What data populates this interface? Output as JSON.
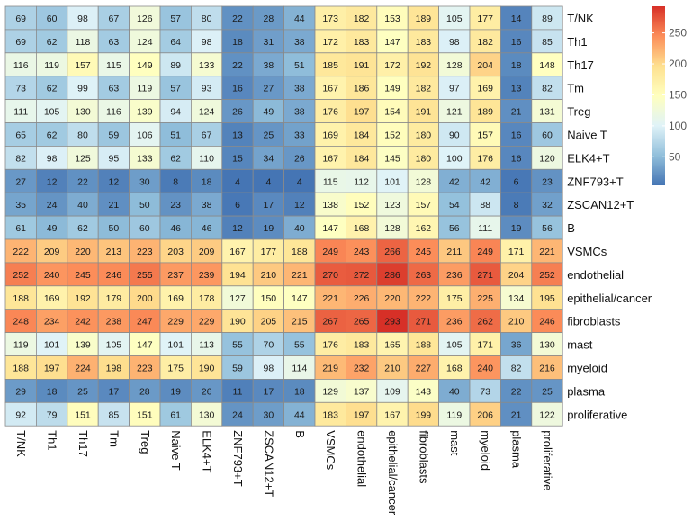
{
  "chart_data": {
    "type": "heatmap",
    "title": "",
    "xlabel": "",
    "ylabel": "",
    "row_labels": [
      "T/NK",
      "Th1",
      "Th17",
      "Tm",
      "Treg",
      "Naive T",
      "ELK4+T",
      "ZNF793+T",
      "ZSCAN12+T",
      "B",
      "VSMCs",
      "endothelial",
      "epithelial/cancer",
      "fibroblasts",
      "mast",
      "myeloid",
      "plasma",
      "proliferative"
    ],
    "col_labels": [
      "T/NK",
      "Th1",
      "Th17",
      "Tm",
      "Treg",
      "Naive T",
      "ELK4+T",
      "ZNF793+T",
      "ZSCAN12+T",
      "B",
      "VSMCs",
      "endothelial",
      "epithelial/cancer",
      "fibroblasts",
      "mast",
      "myeloid",
      "plasma",
      "proliferative"
    ],
    "values": [
      [
        69,
        60,
        98,
        67,
        126,
        57,
        80,
        22,
        28,
        44,
        173,
        182,
        153,
        189,
        105,
        177,
        14,
        89
      ],
      [
        69,
        62,
        118,
        63,
        124,
        64,
        98,
        18,
        31,
        38,
        172,
        183,
        147,
        183,
        98,
        182,
        16,
        85
      ],
      [
        116,
        119,
        157,
        115,
        149,
        89,
        133,
        22,
        38,
        51,
        185,
        191,
        172,
        192,
        128,
        204,
        18,
        148
      ],
      [
        73,
        62,
        99,
        63,
        119,
        57,
        93,
        16,
        27,
        38,
        167,
        186,
        149,
        182,
        97,
        169,
        13,
        82
      ],
      [
        111,
        105,
        130,
        116,
        139,
        94,
        124,
        26,
        49,
        38,
        176,
        197,
        154,
        191,
        121,
        189,
        21,
        131
      ],
      [
        65,
        62,
        80,
        59,
        106,
        51,
        67,
        13,
        25,
        33,
        169,
        184,
        152,
        180,
        90,
        157,
        16,
        60
      ],
      [
        82,
        98,
        125,
        95,
        133,
        62,
        110,
        15,
        34,
        26,
        167,
        184,
        145,
        180,
        100,
        176,
        16,
        120
      ],
      [
        27,
        12,
        22,
        12,
        30,
        8,
        18,
        4,
        4,
        4,
        115,
        112,
        101,
        128,
        42,
        42,
        6,
        23
      ],
      [
        35,
        24,
        40,
        21,
        50,
        23,
        38,
        6,
        17,
        12,
        138,
        152,
        123,
        157,
        54,
        88,
        8,
        32
      ],
      [
        61,
        49,
        62,
        50,
        60,
        46,
        46,
        12,
        19,
        40,
        147,
        168,
        128,
        162,
        56,
        111,
        19,
        56
      ],
      [
        222,
        209,
        220,
        213,
        223,
        203,
        209,
        167,
        177,
        188,
        249,
        243,
        266,
        245,
        211,
        249,
        171,
        221
      ],
      [
        252,
        240,
        245,
        246,
        255,
        237,
        239,
        194,
        210,
        221,
        270,
        272,
        286,
        263,
        236,
        271,
        204,
        252
      ],
      [
        188,
        169,
        192,
        179,
        200,
        169,
        178,
        127,
        150,
        147,
        221,
        226,
        220,
        222,
        175,
        225,
        134,
        195
      ],
      [
        248,
        234,
        242,
        238,
        247,
        229,
        229,
        190,
        205,
        215,
        267,
        265,
        293,
        271,
        236,
        262,
        210,
        246
      ],
      [
        119,
        101,
        139,
        105,
        147,
        101,
        113,
        55,
        70,
        55,
        176,
        183,
        165,
        188,
        105,
        171,
        36,
        130
      ],
      [
        188,
        197,
        224,
        198,
        223,
        175,
        190,
        59,
        98,
        114,
        219,
        232,
        210,
        227,
        168,
        240,
        82,
        216
      ],
      [
        29,
        18,
        25,
        17,
        28,
        19,
        26,
        11,
        17,
        18,
        129,
        137,
        109,
        143,
        40,
        73,
        22,
        25
      ],
      [
        92,
        79,
        151,
        85,
        151,
        61,
        130,
        24,
        30,
        44,
        183,
        197,
        167,
        199,
        119,
        206,
        21,
        122
      ]
    ],
    "colorbar": {
      "min": 4,
      "max": 293,
      "ticks": [
        50,
        100,
        150,
        200,
        250
      ],
      "colors": [
        "#4575b4",
        "#91bfdb",
        "#e0f3f8",
        "#ffffbf",
        "#fee090",
        "#fc8d59",
        "#d73027"
      ]
    }
  }
}
